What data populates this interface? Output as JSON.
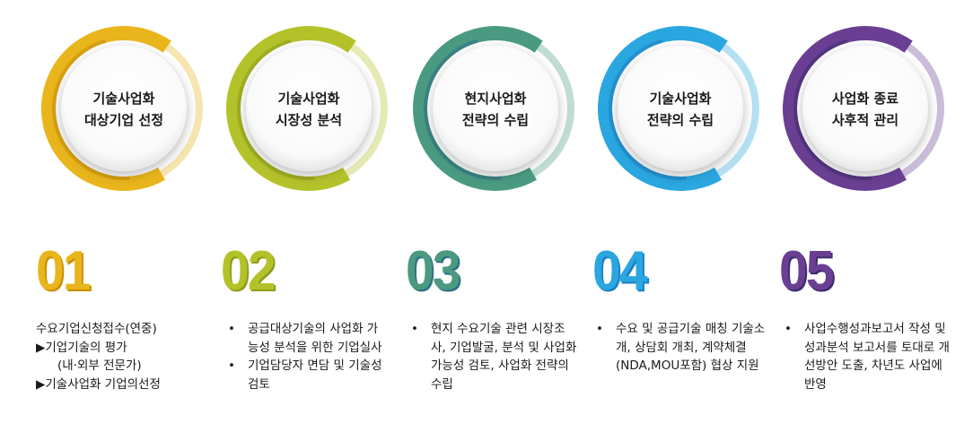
{
  "steps": [
    {
      "title_line1": "기술사업화",
      "title_line2": "대상기업 선정",
      "number": "01",
      "color": "#e9b51c",
      "color_dark": "#c98e06",
      "desc_style": "plain",
      "desc": [
        {
          "text": "수요기업신청접수(연중)",
          "indent": false
        },
        {
          "text": "▶기업기술의 평가",
          "indent": false
        },
        {
          "text": "(내·외부 전문가)",
          "indent": true
        },
        {
          "text": "▶기술사업화 기업의선정",
          "indent": false
        }
      ]
    },
    {
      "title_line1": "기술사업화",
      "title_line2": "시장성 분석",
      "number": "02",
      "color": "#b4c22a",
      "color_dark": "#8f9c18",
      "desc_style": "bullet",
      "desc": [
        {
          "text": "공급대상기술의 사업화 가능성 분석을 위한 기업실사"
        },
        {
          "text": "기업담당자 면담 및 기술성 검토"
        }
      ]
    },
    {
      "title_line1": "현지사업화",
      "title_line2": "전략의 수립",
      "number": "03",
      "color": "#4a9a82",
      "color_dark": "#2f6f85",
      "desc_style": "bullet",
      "desc": [
        {
          "text": "현지 수요기술 관련 시장조사, 기업발굴, 분석 및 사업화 가능성 검토, 사업화 전략의 수립"
        }
      ]
    },
    {
      "title_line1": "기술사업화",
      "title_line2": "전략의 수립",
      "number": "04",
      "color": "#2aa6e0",
      "color_dark": "#1b7fc2",
      "desc_style": "bullet",
      "desc": [
        {
          "text": "수요 및 공급기술 매칭 기술소개, 상담회 개최, 계약체결(NDA,MOU포함) 협상 지원"
        }
      ]
    },
    {
      "title_line1": "사업화 종료",
      "title_line2": "사후적 관리",
      "number": "05",
      "color": "#6a3f93",
      "color_dark": "#3f2c6e",
      "desc_style": "bullet",
      "desc": [
        {
          "text": "사업수행성과보고서 작성 및 성과분석 보고서를 토대로 개선방안 도출, 차년도 사업에 반영"
        }
      ]
    }
  ]
}
